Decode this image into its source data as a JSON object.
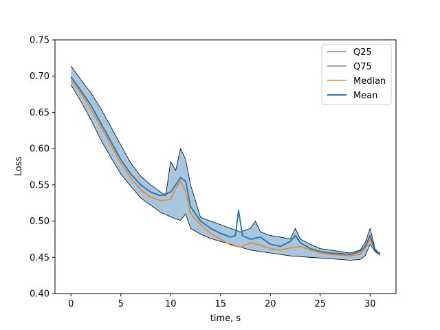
{
  "chart_data": {
    "type": "line",
    "xlabel": "time, s",
    "ylabel": "Loss",
    "xlim": [
      -1.6,
      32.6
    ],
    "ylim": [
      0.4,
      0.75
    ],
    "xticks": [
      0,
      5,
      10,
      15,
      20,
      25,
      30
    ],
    "yticks": [
      0.4,
      0.45,
      0.5,
      0.55,
      0.6,
      0.65,
      0.7,
      0.75
    ],
    "xtick_labels": [
      "0",
      "5",
      "10",
      "15",
      "20",
      "25",
      "30"
    ],
    "ytick_labels": [
      "0.40",
      "0.45",
      "0.50",
      "0.55",
      "0.60",
      "0.65",
      "0.70",
      "0.75"
    ],
    "grid": false,
    "legend_position": "top-right",
    "band": {
      "between": [
        "Q25",
        "Q75"
      ],
      "color": "#a7c7e0"
    },
    "series": [
      {
        "name": "Q25",
        "color": "#000000",
        "x": [
          0,
          1,
          2,
          3,
          4,
          5,
          6,
          7,
          8,
          9,
          10,
          10.5,
          11,
          11.5,
          12,
          13,
          14,
          15,
          16,
          17,
          18,
          19,
          20,
          21,
          22,
          23,
          24,
          25,
          26,
          27,
          28,
          29,
          29.5,
          30,
          30.5,
          31
        ],
        "y": [
          0.688,
          0.665,
          0.64,
          0.612,
          0.588,
          0.565,
          0.548,
          0.532,
          0.522,
          0.512,
          0.506,
          0.503,
          0.501,
          0.51,
          0.49,
          0.482,
          0.476,
          0.472,
          0.468,
          0.464,
          0.46,
          0.458,
          0.456,
          0.454,
          0.452,
          0.451,
          0.45,
          0.449,
          0.448,
          0.447,
          0.446,
          0.447,
          0.452,
          0.468,
          0.458,
          0.453
        ]
      },
      {
        "name": "Q75",
        "color": "#000000",
        "x": [
          0,
          1,
          2,
          3,
          4,
          5,
          6,
          7,
          8,
          9,
          9.5,
          10,
          10.5,
          11,
          11.5,
          12,
          13,
          14,
          15,
          16,
          17,
          18,
          18.5,
          19,
          20,
          21,
          22,
          22.5,
          23,
          24,
          25,
          26,
          27,
          28,
          29,
          29.5,
          30,
          30.5,
          31
        ],
        "y": [
          0.714,
          0.695,
          0.677,
          0.655,
          0.63,
          0.605,
          0.58,
          0.562,
          0.55,
          0.54,
          0.535,
          0.582,
          0.57,
          0.6,
          0.585,
          0.55,
          0.505,
          0.5,
          0.495,
          0.49,
          0.485,
          0.49,
          0.5,
          0.485,
          0.48,
          0.478,
          0.475,
          0.49,
          0.475,
          0.468,
          0.462,
          0.46,
          0.458,
          0.456,
          0.46,
          0.47,
          0.49,
          0.462,
          0.455
        ]
      },
      {
        "name": "Median",
        "color": "#ff7f0e",
        "x": [
          0,
          1,
          2,
          3,
          4,
          5,
          6,
          7,
          8,
          9,
          10,
          10.5,
          11,
          11.5,
          12,
          13,
          14,
          15,
          16,
          17,
          18,
          19,
          20,
          21,
          22,
          23,
          24,
          25,
          26,
          27,
          28,
          29,
          29.5,
          30,
          30.5,
          31
        ],
        "y": [
          0.695,
          0.676,
          0.655,
          0.63,
          0.605,
          0.58,
          0.56,
          0.543,
          0.533,
          0.528,
          0.53,
          0.545,
          0.555,
          0.54,
          0.51,
          0.495,
          0.483,
          0.475,
          0.467,
          0.464,
          0.47,
          0.467,
          0.462,
          0.46,
          0.463,
          0.465,
          0.46,
          0.456,
          0.454,
          0.453,
          0.452,
          0.454,
          0.462,
          0.475,
          0.46,
          0.456
        ]
      },
      {
        "name": "Mean",
        "color": "#1f77b4",
        "x": [
          0,
          1,
          2,
          3,
          4,
          5,
          6,
          7,
          8,
          9,
          10,
          10.5,
          11,
          11.5,
          12,
          13,
          14,
          15,
          16,
          16.5,
          16.8,
          17.2,
          18,
          19,
          20,
          21,
          22,
          22.5,
          23,
          24,
          25,
          26,
          27,
          28,
          29,
          29.5,
          30,
          30.5,
          31
        ],
        "y": [
          0.699,
          0.68,
          0.66,
          0.635,
          0.61,
          0.585,
          0.565,
          0.55,
          0.54,
          0.535,
          0.54,
          0.55,
          0.56,
          0.555,
          0.52,
          0.5,
          0.49,
          0.483,
          0.478,
          0.48,
          0.515,
          0.48,
          0.475,
          0.478,
          0.468,
          0.465,
          0.472,
          0.48,
          0.47,
          0.462,
          0.458,
          0.456,
          0.455,
          0.454,
          0.458,
          0.465,
          0.48,
          0.46,
          0.454
        ]
      }
    ]
  }
}
